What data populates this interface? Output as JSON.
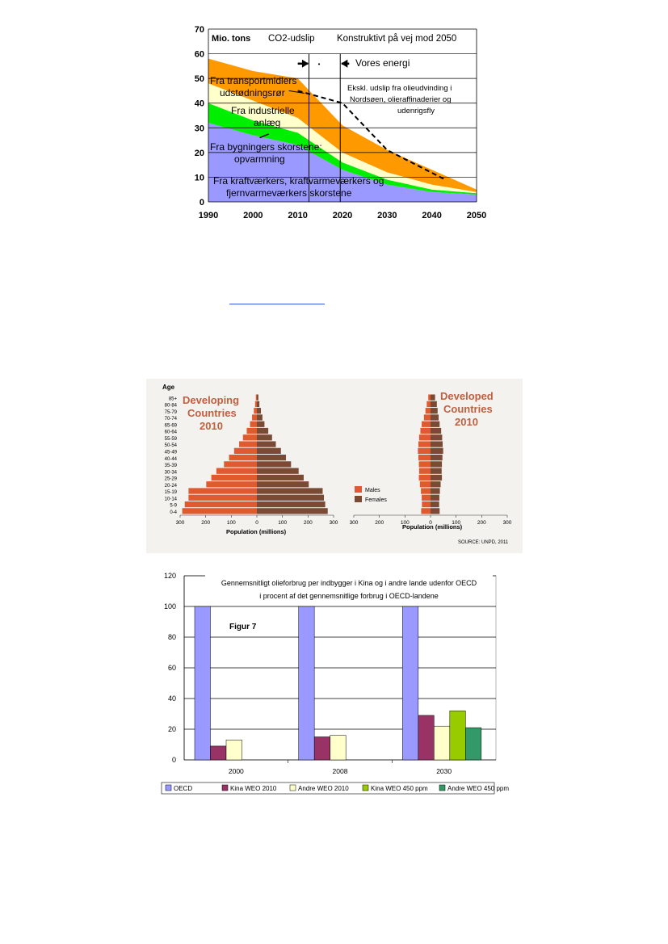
{
  "chart_data": [
    {
      "type": "area",
      "unit_label": "Mio. tons",
      "title_left": "CO2-udslip",
      "title_right": "Konstruktivt på vej mod 2050",
      "x": [
        1990,
        2000,
        2010,
        2020,
        2030,
        2040,
        2050
      ],
      "xlim": [
        1990,
        2050
      ],
      "ylim": [
        0,
        70
      ],
      "y_ticks": [
        0,
        10,
        20,
        30,
        40,
        50,
        60,
        70
      ],
      "x_ticks": [
        1990,
        2000,
        2010,
        2020,
        2030,
        2040,
        2050
      ],
      "series": [
        {
          "name": "Fra kraftværkers, kraftvarmeværkers og fjernvarmeværkers skorstene",
          "color": "#9999ff",
          "values": [
            32,
            27,
            23,
            13,
            7,
            4,
            3
          ]
        },
        {
          "name": "Fra bygningers skorstene: opvarmning",
          "color": "#00ee00",
          "values": [
            8,
            6,
            5,
            3,
            2,
            1,
            0.5
          ]
        },
        {
          "name": "Fra industrielle anlæg",
          "color": "#ffffcc",
          "values": [
            8,
            8,
            6,
            4,
            3,
            2,
            0.5
          ]
        },
        {
          "name": "Fra transportmidlers udstødningsrør",
          "color": "#ff9900",
          "values": [
            10,
            12,
            16,
            11,
            9,
            6,
            1
          ]
        }
      ],
      "dashed_line": {
        "x": [
          2010,
          2020,
          2030,
          2043
        ],
        "y": [
          45,
          40,
          21,
          9
        ]
      },
      "annotations": {
        "arrow_label": "Vores energi",
        "dot_label": "•",
        "note_line1": "Ekskl. udslip fra olieudvinding i",
        "note_line2": "Nordsøen, olieraffinaderier og",
        "note_line3": "udenrigsfly"
      },
      "colors": {
        "grid": "#000000",
        "dash": "#000000"
      }
    },
    {
      "type": "bar",
      "subtype": "population-pyramid",
      "age_label": "Age",
      "age_groups": [
        "85+",
        "80-84",
        "75-79",
        "70-74",
        "65-69",
        "60-64",
        "55-59",
        "50-54",
        "45-49",
        "40-44",
        "35-39",
        "30-34",
        "25-29",
        "20-24",
        "15-19",
        "10-14",
        "5-9",
        "0-4"
      ],
      "left_panel": {
        "title": "Developing Countries 2010",
        "males": [
          4,
          7,
          12,
          19,
          27,
          40,
          55,
          70,
          90,
          110,
          130,
          160,
          180,
          200,
          270,
          270,
          285,
          295
        ],
        "females": [
          6,
          10,
          16,
          22,
          30,
          45,
          60,
          75,
          95,
          115,
          135,
          165,
          185,
          205,
          260,
          265,
          270,
          280
        ]
      },
      "right_panel": {
        "title": "Developed Countries 2010",
        "males": [
          9,
          15,
          20,
          26,
          35,
          40,
          45,
          48,
          50,
          48,
          46,
          45,
          46,
          42,
          38,
          35,
          34,
          37
        ],
        "females": [
          18,
          25,
          28,
          32,
          36,
          42,
          46,
          48,
          50,
          47,
          45,
          44,
          45,
          40,
          37,
          35,
          34,
          36
        ]
      },
      "x_ticks_left": [
        "300",
        "200",
        "100",
        "0",
        "100",
        "200",
        "300"
      ],
      "x_ticks_right": [
        "300",
        "200",
        "100",
        "0",
        "100",
        "200",
        "300"
      ],
      "xlabel": "Population (millions)",
      "legend": [
        "Males",
        "Females"
      ],
      "source": "SOURCE: UNPD, 2011",
      "colors": {
        "males": "#e05a30",
        "females": "#7a4a35",
        "title": "#c06040"
      }
    },
    {
      "type": "bar",
      "title_line1": "Gennemsnitligt olieforbrug per indbygger i Kina og i andre lande udenfor OECD",
      "title_line2": "i procent af det gennemsnitlige forbrug i OECD-landene",
      "annotation": "Figur 7",
      "categories": [
        "2000",
        "2008",
        "2030"
      ],
      "ylim": [
        0,
        120
      ],
      "y_ticks": [
        0,
        20,
        40,
        60,
        80,
        100,
        120
      ],
      "series": [
        {
          "name": "OECD",
          "color": "#9999ff",
          "values": [
            100,
            100,
            100
          ]
        },
        {
          "name": "Kina WEO 2010",
          "color": "#993366",
          "values": [
            9,
            15,
            29
          ]
        },
        {
          "name": "Andre WEO 2010",
          "color": "#ffffcc",
          "values": [
            13,
            16,
            22
          ]
        },
        {
          "name": "Kina WEO 450 ppm",
          "color": "#99cc00",
          "values": [
            null,
            null,
            32
          ]
        },
        {
          "name": "Andre WEO 450 ppm",
          "color": "#339966",
          "values": [
            null,
            null,
            21
          ]
        }
      ]
    }
  ]
}
